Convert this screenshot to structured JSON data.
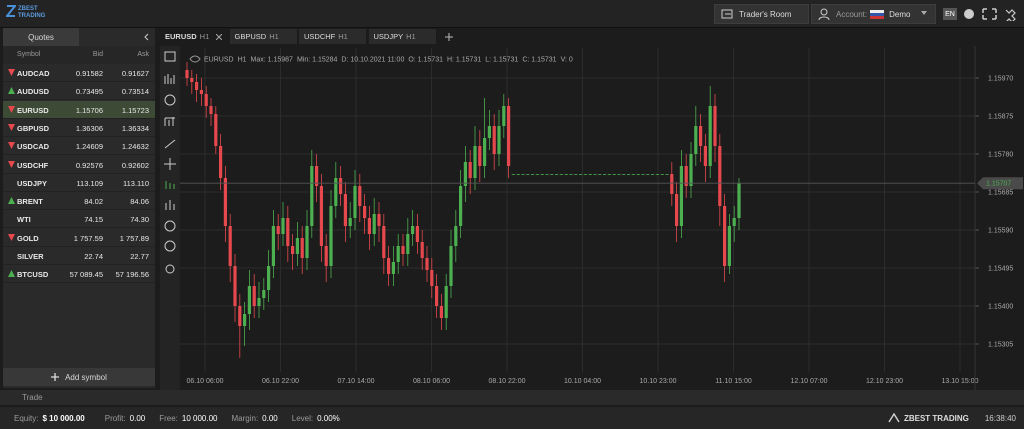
{
  "header": {
    "logo": "ZBEST TRADING",
    "traders_room": "Trader's Room",
    "account_label": "Account:",
    "account_type": "Demo",
    "language": "EN"
  },
  "quotes": {
    "tab": "Quotes",
    "columns": [
      "Symbol",
      "Bid",
      "Ask"
    ],
    "selected": "EURUSD",
    "up_color": "#4caf50",
    "down_color": "#e5484d",
    "rows": [
      {
        "symbol": "AUDCAD",
        "bid": "0.91582",
        "ask": "0.91627",
        "direction": "down"
      },
      {
        "symbol": "AUDUSD",
        "bid": "0.73495",
        "ask": "0.73514",
        "direction": "up"
      },
      {
        "symbol": "EURUSD",
        "bid": "1.15706",
        "ask": "1.15723",
        "direction": "down"
      },
      {
        "symbol": "GBPUSD",
        "bid": "1.36306",
        "ask": "1.36334",
        "direction": "down"
      },
      {
        "symbol": "USDCAD",
        "bid": "1.24609",
        "ask": "1.24632",
        "direction": "down"
      },
      {
        "symbol": "USDCHF",
        "bid": "0.92576",
        "ask": "0.92602",
        "direction": "down"
      },
      {
        "symbol": "USDJPY",
        "bid": "113.109",
        "ask": "113.110",
        "direction": "none"
      },
      {
        "symbol": "BRENT",
        "bid": "84.02",
        "ask": "84.06",
        "direction": "up"
      },
      {
        "symbol": "WTI",
        "bid": "74.15",
        "ask": "74.30",
        "direction": "none"
      },
      {
        "symbol": "GOLD",
        "bid": "1 757.59",
        "ask": "1 757.89",
        "direction": "down"
      },
      {
        "symbol": "SILVER",
        "bid": "22.74",
        "ask": "22.77",
        "direction": "none"
      },
      {
        "symbol": "BTCUSD",
        "bid": "57 089.45",
        "ask": "57 196.56",
        "direction": "up"
      }
    ],
    "add_button": "Add symbol"
  },
  "tabs": [
    {
      "symbol": "EURUSD",
      "timeframe": "H1",
      "active": true
    },
    {
      "symbol": "GBPUSD",
      "timeframe": "H1",
      "active": false
    },
    {
      "symbol": "USDCHF",
      "timeframe": "H1",
      "active": false
    },
    {
      "symbol": "USDJPY",
      "timeframe": "H1",
      "active": false
    }
  ],
  "chart_data": {
    "type": "candlestick",
    "info": [
      "EURUSD",
      "H1",
      "Max: 1.15987",
      "Min: 1.15284",
      "D: 10.10.2021 11:00",
      "O: 1.15731",
      "H: 1.15731",
      "L: 1.15731",
      "C: 1.15731",
      "V: 0"
    ],
    "up_color": "#4caf50",
    "down_color": "#e5484d",
    "grid": true,
    "ylim": [
      1.15195,
      1.16045
    ],
    "yticks": [
      {
        "value": 1.1597,
        "label": "1.15970"
      },
      1.15875,
      {
        "value": 1.1578,
        "label": "1.15780"
      },
      1.15685,
      {
        "value": 1.1559,
        "label": "1.15590"
      },
      1.15495,
      {
        "value": 1.154,
        "label": "1.15400"
      },
      1.15305
    ],
    "current_price": 1.15707,
    "xticks": [
      "06.10 06:00",
      "06.10 22:00",
      "07.10 14:00",
      "08.10 06:00",
      "08.10 22:00",
      "10.10 04:00",
      "10.10 23:00",
      "11.10 15:00",
      "12.10 07:00",
      "12.10 23:00",
      "13.10 15:00"
    ],
    "open": [
      1.1599,
      1.1597,
      1.1596,
      1.1594,
      1.1593,
      1.159,
      1.1588,
      1.158,
      1.1572,
      1.156,
      1.155,
      1.154,
      1.1535,
      1.1538,
      1.1545,
      1.154,
      1.1542,
      1.1544,
      1.155,
      1.156,
      1.1558,
      1.1562,
      1.1555,
      1.1553,
      1.1557,
      1.1552,
      1.156,
      1.1575,
      1.157,
      1.1555,
      1.155,
      1.1565,
      1.1572,
      1.1568,
      1.156,
      1.1562,
      1.157,
      1.1565,
      1.1562,
      1.1558,
      1.1563,
      1.156,
      1.1552,
      1.1548,
      1.1551,
      1.1555,
      1.1553,
      1.1558,
      1.156,
      1.1556,
      1.1552,
      1.1549,
      1.1545,
      1.154,
      1.1537,
      1.1545,
      1.1555,
      1.156,
      1.157,
      1.1576,
      1.1572,
      1.158,
      1.1575,
      1.1582,
      1.1585,
      1.1578,
      1.1585,
      1.159,
      1.1573,
      1.1573,
      1.1573,
      1.1573,
      1.1573,
      1.1573,
      1.1573,
      1.1573,
      1.1573,
      1.1573,
      1.1573,
      1.1573,
      1.1573,
      1.1573,
      1.1573,
      1.1573,
      1.1573,
      1.1573,
      1.1573,
      1.1573,
      1.1573,
      1.1573,
      1.1573,
      1.1573,
      1.1573,
      1.1573,
      1.1573,
      1.1573,
      1.1573,
      1.1573,
      1.1573,
      1.1573,
      1.1573,
      1.1573,
      1.1568,
      1.156,
      1.1575,
      1.157,
      1.1578,
      1.1585,
      1.158,
      1.1575,
      1.159,
      1.158,
      1.1565,
      1.155,
      1.156,
      1.1562
    ],
    "high": [
      1.1601,
      1.1599,
      1.1598,
      1.1597,
      1.1595,
      1.1592,
      1.159,
      1.1583,
      1.1575,
      1.1563,
      1.1553,
      1.1543,
      1.1541,
      1.1549,
      1.1548,
      1.1546,
      1.1547,
      1.1554,
      1.1564,
      1.1563,
      1.1566,
      1.1565,
      1.1558,
      1.1561,
      1.156,
      1.1564,
      1.1579,
      1.1578,
      1.1573,
      1.1558,
      1.1569,
      1.1576,
      1.1575,
      1.1571,
      1.1566,
      1.1574,
      1.1573,
      1.1568,
      1.1565,
      1.1567,
      1.1566,
      1.1563,
      1.1555,
      1.1555,
      1.1558,
      1.1558,
      1.1562,
      1.1564,
      1.1563,
      1.1559,
      1.1555,
      1.1552,
      1.1548,
      1.1543,
      1.1548,
      1.1559,
      1.1564,
      1.1574,
      1.158,
      1.1579,
      1.1585,
      1.1584,
      1.1592,
      1.1589,
      1.1588,
      1.1589,
      1.1593,
      1.1592,
      1.1573,
      1.1573,
      1.1573,
      1.1573,
      1.1573,
      1.1573,
      1.1573,
      1.1573,
      1.1573,
      1.1573,
      1.1573,
      1.1573,
      1.1573,
      1.1573,
      1.1573,
      1.1573,
      1.1573,
      1.1573,
      1.1573,
      1.1573,
      1.1573,
      1.1573,
      1.1573,
      1.1573,
      1.1573,
      1.1573,
      1.1573,
      1.1573,
      1.1573,
      1.1573,
      1.1573,
      1.1573,
      1.1573,
      1.1576,
      1.1571,
      1.1579,
      1.1578,
      1.1581,
      1.159,
      1.1588,
      1.1583,
      1.1595,
      1.1593,
      1.1583,
      1.1568,
      1.1563,
      1.1565,
      1.1572
    ],
    "low": [
      1.1595,
      1.1593,
      1.1591,
      1.159,
      1.1587,
      1.1585,
      1.1578,
      1.1569,
      1.1556,
      1.1546,
      1.1536,
      1.1527,
      1.153,
      1.1534,
      1.1537,
      1.1537,
      1.1539,
      1.1541,
      1.1547,
      1.1554,
      1.1555,
      1.1551,
      1.1549,
      1.155,
      1.1548,
      1.1549,
      1.1557,
      1.1566,
      1.1551,
      1.1546,
      1.1547,
      1.1562,
      1.1565,
      1.1556,
      1.1557,
      1.1559,
      1.1561,
      1.1558,
      1.1554,
      1.1555,
      1.1556,
      1.1548,
      1.1545,
      1.1545,
      1.1548,
      1.155,
      1.155,
      1.1555,
      1.1553,
      1.1549,
      1.1546,
      1.1542,
      1.1537,
      1.1534,
      1.1534,
      1.1542,
      1.1551,
      1.1557,
      1.1566,
      1.1568,
      1.1569,
      1.1571,
      1.1572,
      1.1579,
      1.1574,
      1.1575,
      1.1582,
      1.1572,
      1.1573,
      1.1573,
      1.1573,
      1.1573,
      1.1573,
      1.1573,
      1.1573,
      1.1573,
      1.1573,
      1.1573,
      1.1573,
      1.1573,
      1.1573,
      1.1573,
      1.1573,
      1.1573,
      1.1573,
      1.1573,
      1.1573,
      1.1573,
      1.1573,
      1.1573,
      1.1573,
      1.1573,
      1.1573,
      1.1573,
      1.1573,
      1.1573,
      1.1573,
      1.1573,
      1.1573,
      1.1573,
      1.1573,
      1.1565,
      1.1556,
      1.1557,
      1.1567,
      1.1567,
      1.1575,
      1.1576,
      1.1571,
      1.1572,
      1.1576,
      1.156,
      1.1546,
      1.1548,
      1.1556,
      1.1559
    ],
    "close": [
      1.1597,
      1.1596,
      1.1594,
      1.1593,
      1.159,
      1.1588,
      1.158,
      1.1572,
      1.156,
      1.155,
      1.154,
      1.1535,
      1.1538,
      1.1545,
      1.154,
      1.1542,
      1.1544,
      1.155,
      1.156,
      1.1558,
      1.1562,
      1.1555,
      1.1553,
      1.1557,
      1.1552,
      1.156,
      1.1575,
      1.157,
      1.1555,
      1.155,
      1.1565,
      1.1572,
      1.1568,
      1.156,
      1.1562,
      1.157,
      1.1565,
      1.1562,
      1.1558,
      1.1563,
      1.156,
      1.1552,
      1.1548,
      1.1551,
      1.1555,
      1.1553,
      1.1558,
      1.156,
      1.1556,
      1.1552,
      1.1549,
      1.1545,
      1.154,
      1.1537,
      1.1545,
      1.1555,
      1.156,
      1.157,
      1.1576,
      1.1572,
      1.158,
      1.1575,
      1.1582,
      1.1585,
      1.1578,
      1.1585,
      1.159,
      1.1575,
      1.1573,
      1.1573,
      1.1573,
      1.1573,
      1.1573,
      1.1573,
      1.1573,
      1.1573,
      1.1573,
      1.1573,
      1.1573,
      1.1573,
      1.1573,
      1.1573,
      1.1573,
      1.1573,
      1.1573,
      1.1573,
      1.1573,
      1.1573,
      1.1573,
      1.1573,
      1.1573,
      1.1573,
      1.1573,
      1.1573,
      1.1573,
      1.1573,
      1.1573,
      1.1573,
      1.1573,
      1.1573,
      1.1573,
      1.1568,
      1.156,
      1.1575,
      1.157,
      1.1578,
      1.1585,
      1.158,
      1.1575,
      1.159,
      1.158,
      1.1565,
      1.155,
      1.156,
      1.1562,
      1.15707
    ]
  },
  "trade_bar": "Trade",
  "status": {
    "equity_label": "Equity:",
    "equity": "$ 10 000.00",
    "profit_label": "Profit:",
    "profit": "0.00",
    "free_label": "Free:",
    "free": "10 000.00",
    "margin_label": "Margin:",
    "margin": "0.00",
    "level_label": "Level:",
    "level": "0.00%",
    "brand": "ZBEST TRADING",
    "time": "16:38:40"
  }
}
